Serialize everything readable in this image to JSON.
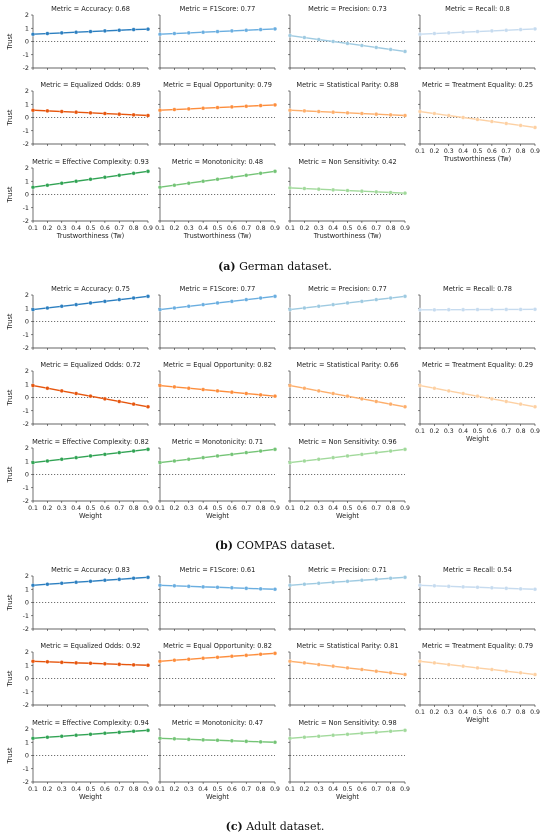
{
  "captions": [
    {
      "label": "(a)",
      "text": "German dataset."
    },
    {
      "label": "(b)",
      "text": "COMPAS dataset."
    },
    {
      "label": "(c)",
      "text": "Adult dataset."
    }
  ],
  "colors": {
    "Accuracy": "#2c7fc0",
    "F1Score": "#6aaee0",
    "Precision": "#9ecae1",
    "Recall": "#c6dbef",
    "Equalized Odds": "#e6550d",
    "Equal Opportunity": "#fd8d3c",
    "Statistical Parity": "#fdae6b",
    "Treatment Equality": "#fdd0a2",
    "Effective Complexity": "#31a354",
    "Monotonicity": "#74c476",
    "Non Sensitivity": "#a1d99b"
  },
  "chart_data": [
    {
      "type": "line",
      "panel": "(a) German dataset.",
      "xlabel_bottom": "Trustworthiness (Tw)",
      "ylabel": "Trust",
      "x": [
        0.1,
        0.2,
        0.3,
        0.4,
        0.5,
        0.6,
        0.7,
        0.8,
        0.9
      ],
      "xticks": [
        "0.1",
        "0.2",
        "0.3",
        "0.4",
        "0.5",
        "0.6",
        "0.7",
        "0.8",
        "0.9"
      ],
      "yticks": [
        "-2",
        "-1",
        "0",
        "1",
        "2"
      ],
      "ylim": [
        -2,
        2
      ],
      "reference_line": 0,
      "subplots": [
        {
          "title": "Metric = Accuracy: 0.68",
          "metric": "Accuracy",
          "values": [
            0.55,
            0.6,
            0.65,
            0.7,
            0.75,
            0.8,
            0.85,
            0.9,
            0.93
          ]
        },
        {
          "title": "Metric = F1Score: 0.77",
          "metric": "F1Score",
          "values": [
            0.55,
            0.6,
            0.65,
            0.7,
            0.75,
            0.8,
            0.85,
            0.9,
            0.95
          ]
        },
        {
          "title": "Metric = Precision: 0.73",
          "metric": "Precision",
          "values": [
            0.45,
            0.3,
            0.15,
            0.0,
            -0.15,
            -0.3,
            -0.45,
            -0.6,
            -0.75
          ]
        },
        {
          "title": "Metric = Recall: 0.8",
          "metric": "Recall",
          "values": [
            0.55,
            0.6,
            0.65,
            0.7,
            0.75,
            0.8,
            0.85,
            0.9,
            0.95
          ]
        },
        {
          "title": "Metric = Equalized Odds: 0.89",
          "metric": "Equalized Odds",
          "values": [
            0.55,
            0.5,
            0.45,
            0.4,
            0.35,
            0.3,
            0.25,
            0.2,
            0.15
          ]
        },
        {
          "title": "Metric = Equal Opportunity: 0.79",
          "metric": "Equal Opportunity",
          "values": [
            0.55,
            0.6,
            0.65,
            0.7,
            0.75,
            0.8,
            0.85,
            0.9,
            0.95
          ]
        },
        {
          "title": "Metric = Statistical Parity: 0.88",
          "metric": "Statistical Parity",
          "values": [
            0.55,
            0.5,
            0.45,
            0.4,
            0.35,
            0.3,
            0.25,
            0.2,
            0.15
          ]
        },
        {
          "title": "Metric = Treatment Equality: 0.25",
          "metric": "Treatment Equality",
          "values": [
            0.45,
            0.3,
            0.15,
            0.0,
            -0.15,
            -0.3,
            -0.45,
            -0.6,
            -0.75
          ]
        },
        {
          "title": "Metric = Effective Complexity: 0.93",
          "metric": "Effective Complexity",
          "values": [
            0.55,
            0.7,
            0.85,
            1.0,
            1.15,
            1.3,
            1.45,
            1.6,
            1.75
          ]
        },
        {
          "title": "Metric = Monotonicity: 0.48",
          "metric": "Monotonicity",
          "values": [
            0.55,
            0.7,
            0.85,
            1.0,
            1.15,
            1.3,
            1.45,
            1.6,
            1.75
          ]
        },
        {
          "title": "Metric = Non Sensitivity: 0.42",
          "metric": "Non Sensitivity",
          "values": [
            0.5,
            0.45,
            0.4,
            0.35,
            0.3,
            0.25,
            0.2,
            0.15,
            0.1
          ]
        }
      ]
    },
    {
      "type": "line",
      "panel": "(b) COMPAS dataset.",
      "xlabel_bottom": "Weight",
      "ylabel": "Trust",
      "x": [
        0.1,
        0.2,
        0.3,
        0.4,
        0.5,
        0.6,
        0.7,
        0.8,
        0.9
      ],
      "xticks": [
        "0.1",
        "0.2",
        "0.3",
        "0.4",
        "0.5",
        "0.6",
        "0.7",
        "0.8",
        "0.9"
      ],
      "yticks": [
        "-2",
        "-1",
        "0",
        "1",
        "2"
      ],
      "ylim": [
        -2,
        2
      ],
      "reference_line": 0,
      "subplots": [
        {
          "title": "Metric = Accuracy: 0.75",
          "metric": "Accuracy",
          "values": [
            0.9,
            1.02,
            1.15,
            1.27,
            1.4,
            1.52,
            1.65,
            1.77,
            1.9
          ]
        },
        {
          "title": "Metric = F1Score: 0.77",
          "metric": "F1Score",
          "values": [
            0.9,
            1.02,
            1.15,
            1.27,
            1.4,
            1.52,
            1.65,
            1.77,
            1.9
          ]
        },
        {
          "title": "Metric = Precision: 0.77",
          "metric": "Precision",
          "values": [
            0.9,
            1.02,
            1.15,
            1.27,
            1.4,
            1.52,
            1.65,
            1.77,
            1.9
          ]
        },
        {
          "title": "Metric = Recall: 0.78",
          "metric": "Recall",
          "values": [
            0.88,
            0.88,
            0.89,
            0.89,
            0.9,
            0.9,
            0.91,
            0.91,
            0.92
          ]
        },
        {
          "title": "Metric = Equalized Odds: 0.72",
          "metric": "Equalized Odds",
          "values": [
            0.9,
            0.7,
            0.5,
            0.3,
            0.1,
            -0.1,
            -0.3,
            -0.5,
            -0.7
          ]
        },
        {
          "title": "Metric = Equal Opportunity: 0.82",
          "metric": "Equal Opportunity",
          "values": [
            0.9,
            0.8,
            0.7,
            0.6,
            0.5,
            0.4,
            0.3,
            0.2,
            0.1
          ]
        },
        {
          "title": "Metric = Statistical Parity: 0.66",
          "metric": "Statistical Parity",
          "values": [
            0.9,
            0.7,
            0.5,
            0.3,
            0.1,
            -0.1,
            -0.3,
            -0.5,
            -0.7
          ]
        },
        {
          "title": "Metric = Treatment Equality: 0.29",
          "metric": "Treatment Equality",
          "values": [
            0.9,
            0.7,
            0.5,
            0.3,
            0.1,
            -0.1,
            -0.3,
            -0.5,
            -0.7
          ]
        },
        {
          "title": "Metric = Effective Complexity: 0.82",
          "metric": "Effective Complexity",
          "values": [
            0.9,
            1.02,
            1.15,
            1.27,
            1.4,
            1.52,
            1.65,
            1.77,
            1.9
          ]
        },
        {
          "title": "Metric = Monotonicity: 0.71",
          "metric": "Monotonicity",
          "values": [
            0.9,
            1.02,
            1.15,
            1.27,
            1.4,
            1.52,
            1.65,
            1.77,
            1.9
          ]
        },
        {
          "title": "Metric = Non Sensitivity: 0.96",
          "metric": "Non Sensitivity",
          "values": [
            0.9,
            1.02,
            1.15,
            1.27,
            1.4,
            1.52,
            1.65,
            1.77,
            1.9
          ]
        }
      ]
    },
    {
      "type": "line",
      "panel": "(c) Adult dataset.",
      "xlabel_bottom": "Weight",
      "ylabel": "Trust",
      "x": [
        0.1,
        0.2,
        0.3,
        0.4,
        0.5,
        0.6,
        0.7,
        0.8,
        0.9
      ],
      "xticks": [
        "0.1",
        "0.2",
        "0.3",
        "0.4",
        "0.5",
        "0.6",
        "0.7",
        "0.8",
        "0.9"
      ],
      "yticks": [
        "-2",
        "-1",
        "0",
        "1",
        "2"
      ],
      "ylim": [
        -2,
        2
      ],
      "reference_line": 0,
      "subplots": [
        {
          "title": "Metric = Accuracy: 0.83",
          "metric": "Accuracy",
          "values": [
            1.3,
            1.38,
            1.45,
            1.53,
            1.6,
            1.68,
            1.75,
            1.83,
            1.9
          ]
        },
        {
          "title": "Metric = F1Score: 0.61",
          "metric": "F1Score",
          "values": [
            1.3,
            1.26,
            1.22,
            1.18,
            1.15,
            1.11,
            1.07,
            1.03,
            1.0
          ]
        },
        {
          "title": "Metric = Precision: 0.71",
          "metric": "Precision",
          "values": [
            1.3,
            1.38,
            1.45,
            1.53,
            1.6,
            1.68,
            1.75,
            1.83,
            1.9
          ]
        },
        {
          "title": "Metric = Recall: 0.54",
          "metric": "Recall",
          "values": [
            1.3,
            1.26,
            1.22,
            1.18,
            1.15,
            1.11,
            1.07,
            1.03,
            1.0
          ]
        },
        {
          "title": "Metric = Equalized Odds: 0.92",
          "metric": "Equalized Odds",
          "values": [
            1.3,
            1.26,
            1.22,
            1.18,
            1.15,
            1.11,
            1.07,
            1.03,
            1.0
          ]
        },
        {
          "title": "Metric = Equal Opportunity: 0.82",
          "metric": "Equal Opportunity",
          "values": [
            1.3,
            1.38,
            1.45,
            1.53,
            1.6,
            1.68,
            1.75,
            1.83,
            1.9
          ]
        },
        {
          "title": "Metric = Statistical Parity: 0.81",
          "metric": "Statistical Parity",
          "values": [
            1.3,
            1.18,
            1.05,
            0.93,
            0.8,
            0.68,
            0.55,
            0.43,
            0.3
          ]
        },
        {
          "title": "Metric = Treatment Equality: 0.79",
          "metric": "Treatment Equality",
          "values": [
            1.3,
            1.18,
            1.05,
            0.93,
            0.8,
            0.68,
            0.55,
            0.43,
            0.3
          ]
        },
        {
          "title": "Metric = Effective Complexity: 0.94",
          "metric": "Effective Complexity",
          "values": [
            1.3,
            1.38,
            1.45,
            1.53,
            1.6,
            1.68,
            1.75,
            1.83,
            1.9
          ]
        },
        {
          "title": "Metric = Monotonicity: 0.47",
          "metric": "Monotonicity",
          "values": [
            1.3,
            1.26,
            1.22,
            1.18,
            1.15,
            1.11,
            1.07,
            1.03,
            1.0
          ]
        },
        {
          "title": "Metric = Non Sensitivity: 0.98",
          "metric": "Non Sensitivity",
          "values": [
            1.3,
            1.38,
            1.45,
            1.53,
            1.6,
            1.68,
            1.75,
            1.83,
            1.9
          ]
        }
      ]
    }
  ]
}
